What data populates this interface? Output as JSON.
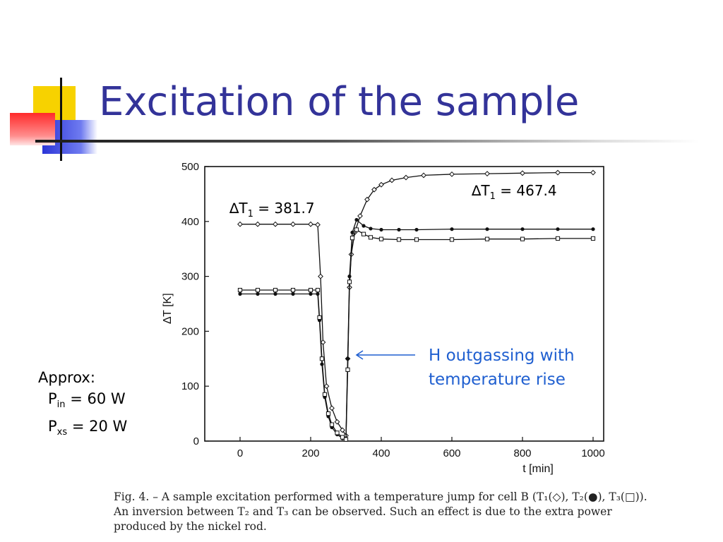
{
  "slide": {
    "title": "Excitation of the sample"
  },
  "annotations": {
    "dt1_left": {
      "prefix": "∆T",
      "sub": "1",
      "suffix": " = 381.7"
    },
    "dt1_right": {
      "prefix": "∆T",
      "sub": "1",
      "suffix": " = 467.4"
    },
    "note_line1": "H outgassing with",
    "note_line2": "temperature rise",
    "arrow_color": "#1f5fd0",
    "approx_label": "Approx:",
    "pin": {
      "prefix": "P",
      "sub": "in",
      "suffix": " = 60 W"
    },
    "pxs": {
      "prefix": "P",
      "sub": "xs",
      "suffix": " = 20 W"
    }
  },
  "caption": "Fig. 4. – A sample excitation performed with a temperature jump for cell B (T₁(◇), T₂(●), T₃(□)). An inversion between T₂ and T₃ can be observed. Such an effect is due to the extra power produced by the nickel rod.",
  "chart_data": {
    "type": "line",
    "xlabel": "t [min]",
    "ylabel": "∆T [K]",
    "xlim": [
      -100,
      1030
    ],
    "ylim": [
      0,
      500
    ],
    "xticks": [
      0,
      200,
      400,
      600,
      800,
      1000
    ],
    "yticks": [
      0,
      100,
      200,
      300,
      400,
      500
    ],
    "series": [
      {
        "name": "T1",
        "marker": "diamond",
        "x": [
          0,
          50,
          100,
          150,
          200,
          220,
          228,
          235,
          245,
          260,
          275,
          290,
          300,
          305,
          310,
          315,
          325,
          340,
          360,
          380,
          400,
          430,
          470,
          520,
          600,
          700,
          800,
          900,
          1000
        ],
        "y": [
          395,
          395,
          395,
          395,
          395,
          394,
          300,
          180,
          100,
          60,
          35,
          20,
          10,
          150,
          280,
          340,
          380,
          410,
          440,
          458,
          467,
          475,
          480,
          484,
          486,
          487,
          488,
          489,
          489
        ]
      },
      {
        "name": "T2",
        "marker": "circle",
        "x": [
          0,
          50,
          100,
          150,
          200,
          220,
          225,
          232,
          240,
          250,
          260,
          275,
          290,
          300,
          305,
          310,
          318,
          330,
          350,
          370,
          400,
          450,
          500,
          600,
          700,
          800,
          900,
          1000
        ],
        "y": [
          268,
          268,
          268,
          268,
          268,
          268,
          220,
          140,
          80,
          45,
          25,
          12,
          5,
          2,
          150,
          300,
          380,
          403,
          392,
          387,
          385,
          385,
          385,
          386,
          386,
          386,
          386,
          386
        ]
      },
      {
        "name": "T3",
        "marker": "square",
        "x": [
          0,
          50,
          100,
          150,
          200,
          220,
          225,
          232,
          240,
          250,
          260,
          275,
          290,
          300,
          305,
          310,
          318,
          330,
          350,
          370,
          400,
          450,
          500,
          600,
          700,
          800,
          900,
          1000
        ],
        "y": [
          275,
          275,
          275,
          275,
          275,
          275,
          225,
          150,
          85,
          50,
          30,
          15,
          7,
          3,
          130,
          290,
          370,
          385,
          377,
          371,
          368,
          367,
          367,
          367,
          368,
          368,
          369,
          369
        ]
      }
    ]
  }
}
